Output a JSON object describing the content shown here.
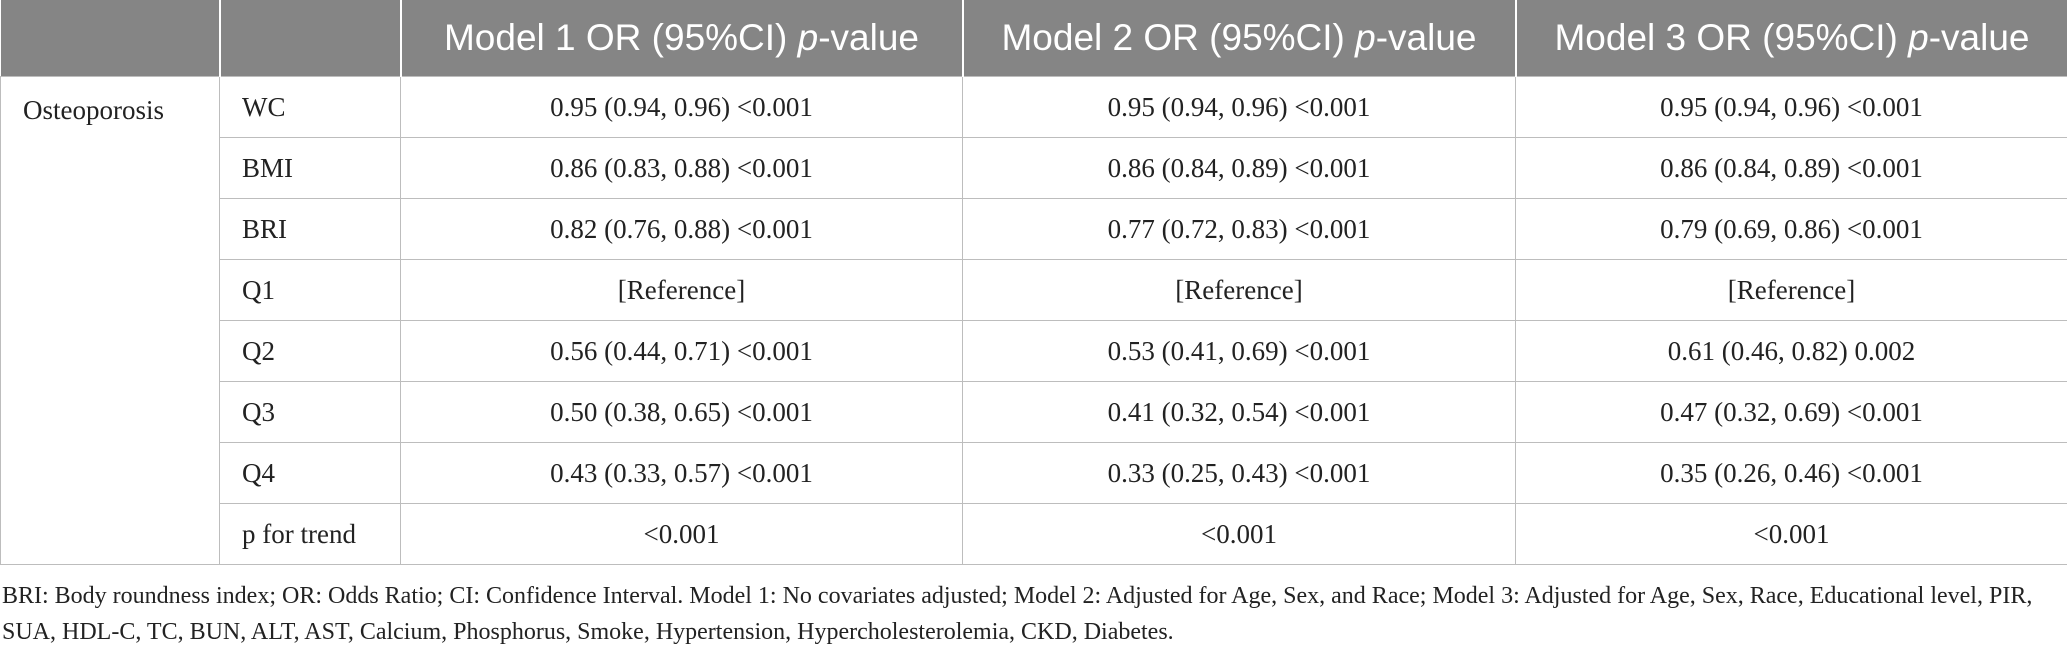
{
  "header": {
    "empty1": "",
    "empty2": "",
    "models": [
      {
        "prefix": "Model 1 OR (95%CI) ",
        "ital": "p",
        "suffix": "-value"
      },
      {
        "prefix": "Model 2 OR (95%CI) ",
        "ital": "p",
        "suffix": "-value"
      },
      {
        "prefix": "Model 3 OR (95%CI) ",
        "ital": "p",
        "suffix": "-value"
      }
    ]
  },
  "group_label": "Osteoporosis",
  "rows": [
    {
      "label": "WC",
      "m1": "0.95 (0.94, 0.96) <0.001",
      "m2": "0.95 (0.94, 0.96) <0.001",
      "m3": "0.95 (0.94, 0.96) <0.001"
    },
    {
      "label": "BMI",
      "m1": "0.86 (0.83, 0.88) <0.001",
      "m2": "0.86 (0.84, 0.89) <0.001",
      "m3": "0.86 (0.84, 0.89) <0.001"
    },
    {
      "label": "BRI",
      "m1": "0.82 (0.76, 0.88) <0.001",
      "m2": "0.77 (0.72, 0.83) <0.001",
      "m3": "0.79 (0.69, 0.86) <0.001"
    },
    {
      "label": "Q1",
      "m1": "[Reference]",
      "m2": "[Reference]",
      "m3": "[Reference]"
    },
    {
      "label": "Q2",
      "m1": "0.56 (0.44, 0.71) <0.001",
      "m2": "0.53 (0.41, 0.69) <0.001",
      "m3": "0.61 (0.46, 0.82) 0.002"
    },
    {
      "label": "Q3",
      "m1": "0.50 (0.38, 0.65) <0.001",
      "m2": "0.41 (0.32, 0.54) <0.001",
      "m3": "0.47 (0.32, 0.69) <0.001"
    },
    {
      "label": "Q4",
      "m1": "0.43 (0.33, 0.57) <0.001",
      "m2": "0.33 (0.25, 0.43) <0.001",
      "m3": "0.35 (0.26, 0.46) <0.001"
    },
    {
      "label": "p for trend",
      "m1": "<0.001",
      "m2": "<0.001",
      "m3": "<0.001"
    }
  ],
  "footnote": "BRI: Body roundness index; OR: Odds Ratio; CI: Confidence Interval. Model 1: No covariates adjusted; Model 2: Adjusted for Age, Sex, and Race; Model 3: Adjusted for Age, Sex, Race, Educational level, PIR, SUA, HDL-C, TC, BUN, ALT, AST, Calcium, Phosphorus, Smoke, Hypertension, Hypercholesterolemia, CKD, Diabetes."
}
